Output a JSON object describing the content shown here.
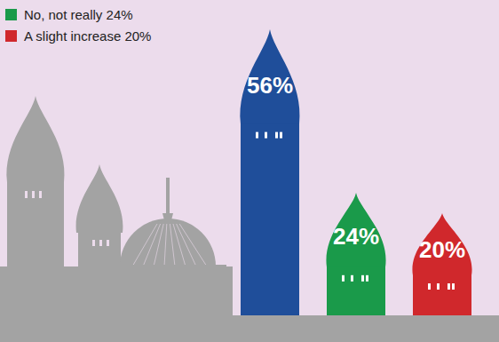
{
  "chart_data": {
    "type": "bar",
    "categories": [
      null,
      "No, not really 24%",
      "A slight increase 20%"
    ],
    "values": [
      56,
      24,
      20
    ],
    "value_labels": [
      "56%",
      "24%",
      "20%"
    ],
    "colors": [
      "#1f4e9a",
      "#1a9a4a",
      "#d0282c"
    ],
    "ylim": [
      0,
      60
    ],
    "data_labels": true,
    "tick_labels": false,
    "grid": false,
    "legend": "upper left"
  }
}
